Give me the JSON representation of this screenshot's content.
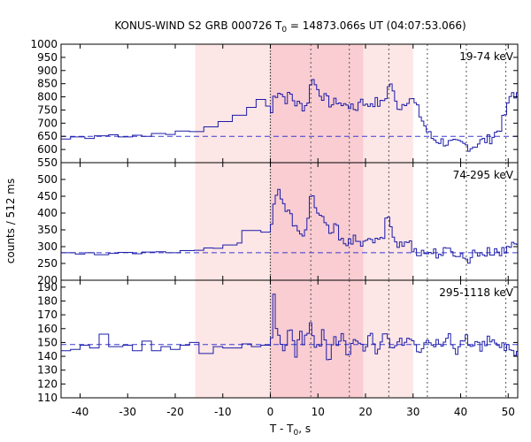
{
  "chart_data": {
    "type": "line",
    "title": {
      "prefix": "KONUS-WIND S2 GRB 000726 T",
      "sub": "0",
      "suffix": " = 14873.066s UT (04:07:53.066)"
    },
    "xlabel": {
      "prefix": "T - T",
      "sub": "0",
      "suffix": ", s"
    },
    "ylabel": "counts / 512 ms",
    "xlim": [
      -44,
      52
    ],
    "xticks": [
      -40,
      -30,
      -20,
      -10,
      0,
      10,
      20,
      30,
      40,
      50
    ],
    "bin_width_s": 0.512,
    "colors": {
      "series": "#1c1ca8",
      "background_mean": "#3a3ad0",
      "light_band": "#fde6e6",
      "dark_band": "#f9cdd2",
      "marker_lines": "#555555",
      "t0_line": "#333333"
    },
    "shaded_intervals": [
      {
        "x0": -15.8,
        "x1": 30.0,
        "shade": "light"
      },
      {
        "x0": 0.0,
        "x1": 19.5,
        "shade": "dark"
      }
    ],
    "t0_line_x": 0.0,
    "marker_lines_x": [
      8.5,
      16.6,
      24.9,
      33.0,
      41.2,
      49.5
    ],
    "panels": [
      {
        "label": "19-74 keV",
        "ylim": [
          550,
          1000
        ],
        "yticks": [
          550,
          600,
          650,
          700,
          750,
          800,
          850,
          900,
          950,
          1000
        ],
        "background_level": 650,
        "series": {
          "name": "19-74 keV",
          "steps_before_trigger": [
            [
              -44,
              640
            ],
            [
              -42,
              648
            ],
            [
              -39,
              642
            ],
            [
              -37,
              652
            ],
            [
              -34,
              656
            ],
            [
              -32,
              648
            ],
            [
              -29,
              654
            ],
            [
              -27,
              650
            ],
            [
              -25,
              661
            ],
            [
              -22,
              657
            ],
            [
              -20,
              670
            ],
            [
              -17,
              668
            ],
            [
              -14,
              686
            ],
            [
              -11,
              706
            ],
            [
              -8,
              730
            ],
            [
              -5,
              760
            ],
            [
              -3,
              790
            ],
            [
              -1,
              765
            ]
          ],
          "after_trigger": {
            "x_start": 0,
            "x_end": 52,
            "points": [
              [
                0.0,
                740
              ],
              [
                0.5,
                800
              ],
              [
                1.5,
                825
              ],
              [
                3.0,
                790
              ],
              [
                4.0,
                810
              ],
              [
                5.0,
                775
              ],
              [
                6.0,
                770
              ],
              [
                7.0,
                760
              ],
              [
                8.0,
                800
              ],
              [
                8.5,
                900
              ],
              [
                9.0,
                850
              ],
              [
                10.0,
                820
              ],
              [
                11.0,
                800
              ],
              [
                12.0,
                780
              ],
              [
                13.0,
                770
              ],
              [
                14.0,
                790
              ],
              [
                15.0,
                760
              ],
              [
                16.0,
                780
              ],
              [
                17.0,
                750
              ],
              [
                18.0,
                760
              ],
              [
                19.0,
                800
              ],
              [
                20.0,
                760
              ],
              [
                21.0,
                780
              ],
              [
                22.0,
                780
              ],
              [
                23.0,
                770
              ],
              [
                24.0,
                800
              ],
              [
                25.0,
                860
              ],
              [
                26.0,
                780
              ],
              [
                27.0,
                760
              ],
              [
                28.0,
                780
              ],
              [
                29.0,
                800
              ],
              [
                30.0,
                780
              ],
              [
                31.0,
                740
              ],
              [
                32.0,
                700
              ],
              [
                33.0,
                660
              ],
              [
                34.0,
                640
              ],
              [
                36.0,
                630
              ],
              [
                38.0,
                620
              ],
              [
                40.0,
                620
              ],
              [
                42.0,
                610
              ],
              [
                44.0,
                630
              ],
              [
                46.0,
                640
              ],
              [
                48.0,
                680
              ],
              [
                49.5,
                750
              ],
              [
                50.5,
                820
              ],
              [
                52.0,
                800
              ]
            ]
          }
        }
      },
      {
        "label": "74-295 keV",
        "ylim": [
          200,
          550
        ],
        "yticks": [
          200,
          250,
          300,
          350,
          400,
          450,
          500
        ],
        "background_level": 282,
        "series": {
          "name": "74-295 keV",
          "steps_before_trigger": [
            [
              -44,
              282
            ],
            [
              -41,
              278
            ],
            [
              -39,
              282
            ],
            [
              -37,
              276
            ],
            [
              -34,
              280
            ],
            [
              -32,
              283
            ],
            [
              -29,
              279
            ],
            [
              -27,
              284
            ],
            [
              -24,
              285
            ],
            [
              -22,
              282
            ],
            [
              -19,
              288
            ],
            [
              -16,
              289
            ],
            [
              -14,
              296
            ],
            [
              -12,
              295
            ],
            [
              -10,
              305
            ],
            [
              -7,
              311
            ],
            [
              -6,
              348
            ],
            [
              -2,
              343
            ]
          ],
          "after_trigger": {
            "x_start": 0,
            "x_end": 52,
            "points": [
              [
                0.0,
                360
              ],
              [
                0.5,
                440
              ],
              [
                1.5,
                475
              ],
              [
                2.5,
                420
              ],
              [
                3.5,
                400
              ],
              [
                4.5,
                380
              ],
              [
                5.5,
                340
              ],
              [
                6.5,
                320
              ],
              [
                7.5,
                380
              ],
              [
                8.5,
                470
              ],
              [
                9.5,
                400
              ],
              [
                10.5,
                380
              ],
              [
                11.5,
                360
              ],
              [
                12.5,
                340
              ],
              [
                13.5,
                360
              ],
              [
                14.5,
                330
              ],
              [
                15.5,
                320
              ],
              [
                16.5,
                310
              ],
              [
                17.5,
                320
              ],
              [
                18.5,
                300
              ],
              [
                19.5,
                330
              ],
              [
                20.5,
                310
              ],
              [
                21.5,
                320
              ],
              [
                22.5,
                310
              ],
              [
                23.5,
                330
              ],
              [
                24.5,
                400
              ],
              [
                25.5,
                330
              ],
              [
                26.5,
                310
              ],
              [
                27.5,
                300
              ],
              [
                28.5,
                320
              ],
              [
                29.5,
                300
              ],
              [
                30.5,
                290
              ],
              [
                31.5,
                280
              ],
              [
                33.0,
                285
              ],
              [
                35.0,
                280
              ],
              [
                37.0,
                285
              ],
              [
                39.0,
                282
              ],
              [
                41.0,
                260
              ],
              [
                43.0,
                285
              ],
              [
                45.0,
                280
              ],
              [
                47.0,
                290
              ],
              [
                49.0,
                282
              ],
              [
                50.5,
                310
              ],
              [
                52.0,
                320
              ]
            ]
          }
        }
      },
      {
        "label": "295-1118 keV",
        "ylim": [
          110,
          195
        ],
        "yticks": [
          110,
          120,
          130,
          140,
          150,
          160,
          170,
          180,
          190
        ],
        "background_level": 148.5,
        "series": {
          "name": "295-1118 keV",
          "steps_before_trigger": [
            [
              -44,
              144
            ],
            [
              -42,
              145
            ],
            [
              -40,
              148
            ],
            [
              -38,
              146
            ],
            [
              -36,
              156
            ],
            [
              -34,
              147
            ],
            [
              -31,
              148
            ],
            [
              -29,
              144
            ],
            [
              -27,
              151
            ],
            [
              -25,
              144
            ],
            [
              -23,
              147
            ],
            [
              -21,
              145
            ],
            [
              -19,
              148
            ],
            [
              -17,
              150
            ],
            [
              -15,
              142
            ],
            [
              -12,
              147
            ],
            [
              -10,
              146
            ],
            [
              -6,
              149
            ],
            [
              -4,
              147
            ],
            [
              -2,
              148
            ]
          ],
          "after_trigger": {
            "x_start": 0,
            "x_end": 52,
            "points": [
              [
                0.0,
                150
              ],
              [
                0.5,
                185
              ],
              [
                1.0,
                160
              ],
              [
                2.0,
                150
              ],
              [
                3.0,
                145
              ],
              [
                4.0,
                165
              ],
              [
                5.0,
                140
              ],
              [
                6.0,
                155
              ],
              [
                7.0,
                150
              ],
              [
                8.0,
                165
              ],
              [
                9.0,
                150
              ],
              [
                10.0,
                145
              ],
              [
                11.0,
                160
              ],
              [
                12.0,
                130
              ],
              [
                13.0,
                155
              ],
              [
                14.0,
                145
              ],
              [
                15.0,
                160
              ],
              [
                16.0,
                135
              ],
              [
                17.0,
                150
              ],
              [
                18.0,
                155
              ],
              [
                19.0,
                145
              ],
              [
                20.0,
                150
              ],
              [
                21.0,
                160
              ],
              [
                22.0,
                140
              ],
              [
                23.0,
                150
              ],
              [
                24.0,
                155
              ],
              [
                25.0,
                145
              ],
              [
                26.0,
                150
              ],
              [
                27.0,
                155
              ],
              [
                28.0,
                145
              ],
              [
                29.0,
                155
              ],
              [
                30.0,
                150
              ],
              [
                31.0,
                145
              ],
              [
                32.0,
                150
              ],
              [
                33.0,
                155
              ],
              [
                34.0,
                148
              ],
              [
                35.0,
                150
              ],
              [
                36.0,
                145
              ],
              [
                37.0,
                155
              ],
              [
                38.0,
                150
              ],
              [
                39.0,
                142
              ],
              [
                40.0,
                150
              ],
              [
                41.0,
                155
              ],
              [
                42.0,
                148
              ],
              [
                43.0,
                150
              ],
              [
                44.0,
                145
              ],
              [
                45.0,
                150
              ],
              [
                46.0,
                152
              ],
              [
                47.0,
                148
              ],
              [
                48.0,
                150
              ],
              [
                49.0,
                145
              ],
              [
                50.0,
                150
              ],
              [
                51.0,
                140
              ],
              [
                52.0,
                145
              ]
            ]
          }
        }
      }
    ]
  }
}
